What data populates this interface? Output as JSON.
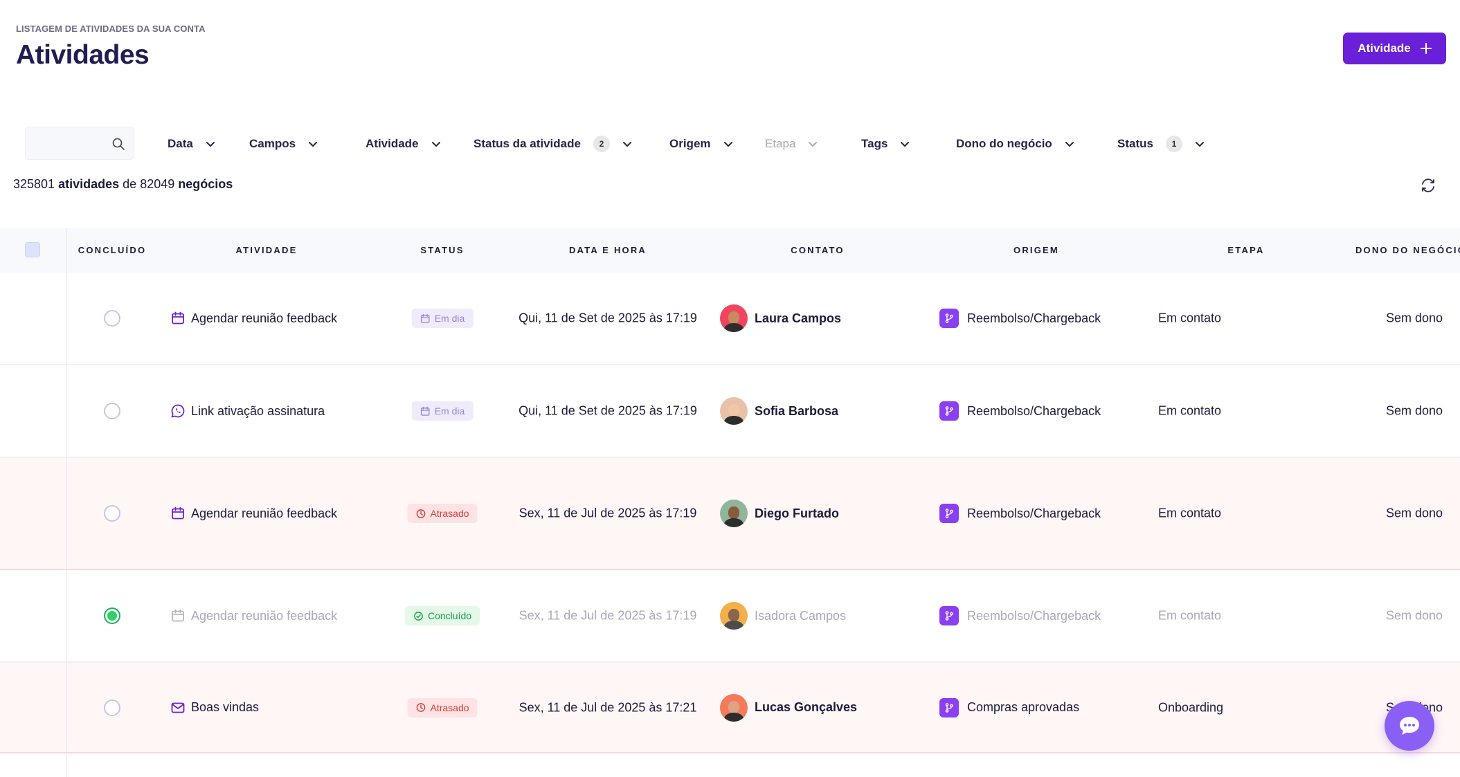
{
  "header": {
    "eyebrow": "LISTAGEM DE ATIVIDADES DA SUA CONTA",
    "title": "Atividades",
    "add_button_label": "Atividade"
  },
  "search": {
    "placeholder": ""
  },
  "filters": [
    {
      "label": "Data",
      "count": null,
      "disabled": false
    },
    {
      "label": "Campos",
      "count": null,
      "disabled": false
    },
    {
      "label": "Atividade",
      "count": null,
      "disabled": false
    },
    {
      "label": "Status da atividade",
      "count": "2",
      "disabled": false
    },
    {
      "label": "Origem",
      "count": null,
      "disabled": false
    },
    {
      "label": "Etapa",
      "count": null,
      "disabled": true
    },
    {
      "label": "Tags",
      "count": null,
      "disabled": false
    },
    {
      "label": "Dono do negócio",
      "count": null,
      "disabled": false
    },
    {
      "label": "Status",
      "count": "1",
      "disabled": false
    }
  ],
  "summary": {
    "activities_count": "325801",
    "activities_word": "atividades",
    "of_word": "de",
    "deals_count": "82049",
    "deals_word": "negócios"
  },
  "table": {
    "columns": [
      "CONCLUÍDO",
      "ATIVIDADE",
      "STATUS",
      "DATA E HORA",
      "CONTATO",
      "ORIGEM",
      "ETAPA",
      "DONO DO NEGÓCIO"
    ],
    "rows": [
      {
        "done": false,
        "activity": "Agendar reunião feedback",
        "activity_icon": "calendar-icon",
        "status": "Em dia",
        "status_kind": "ondate",
        "datetime": "Qui, 11 de Set de 2025 às 17:19",
        "contact": "Laura Campos",
        "avatar_color": "#f0445f",
        "skin": "#c98a5f",
        "origin": "Reembolso/Chargeback",
        "stage": "Em contato",
        "owner": "Sem dono"
      },
      {
        "done": false,
        "activity": "Link ativação assinatura",
        "activity_icon": "whatsapp-icon",
        "status": "Em dia",
        "status_kind": "ondate",
        "datetime": "Qui, 11 de Set de 2025 às 17:19",
        "contact": "Sofia Barbosa",
        "avatar_color": "#e8c2a8",
        "skin": "#f1c7a4",
        "origin": "Reembolso/Chargeback",
        "stage": "Em contato",
        "owner": "Sem dono"
      },
      {
        "done": false,
        "activity": "Agendar reunião feedback",
        "activity_icon": "calendar-icon",
        "status": "Atrasado",
        "status_kind": "late",
        "datetime": "Sex, 11 de Jul de 2025 às 17:19",
        "contact": "Diego Furtado",
        "avatar_color": "#8fb59a",
        "skin": "#8a5a3c",
        "origin": "Reembolso/Chargeback",
        "stage": "Em contato",
        "owner": "Sem dono"
      },
      {
        "done": true,
        "activity": "Agendar reunião feedback",
        "activity_icon": "calendar-icon",
        "status": "Concluído",
        "status_kind": "done",
        "datetime": "Sex, 11 de Jul de 2025 às 17:19",
        "contact": "Isadora Campos",
        "avatar_color": "#f2a22a",
        "skin": "#7a4b2c",
        "origin": "Reembolso/Chargeback",
        "stage": "Em contato",
        "owner": "Sem dono"
      },
      {
        "done": false,
        "activity": "Boas vindas",
        "activity_icon": "mail-icon",
        "status": "Atrasado",
        "status_kind": "late",
        "datetime": "Sex, 11 de Jul de 2025 às 17:21",
        "contact": "Lucas Gonçalves",
        "avatar_color": "#f47a5a",
        "skin": "#e0a184",
        "origin": "Compras aprovadas",
        "stage": "Onboarding",
        "owner": "Sem dono"
      }
    ]
  },
  "colors": {
    "accent": "#6a1fd8",
    "origin_icon": "#8a3ff0",
    "late_bg": "#fff6f6"
  }
}
